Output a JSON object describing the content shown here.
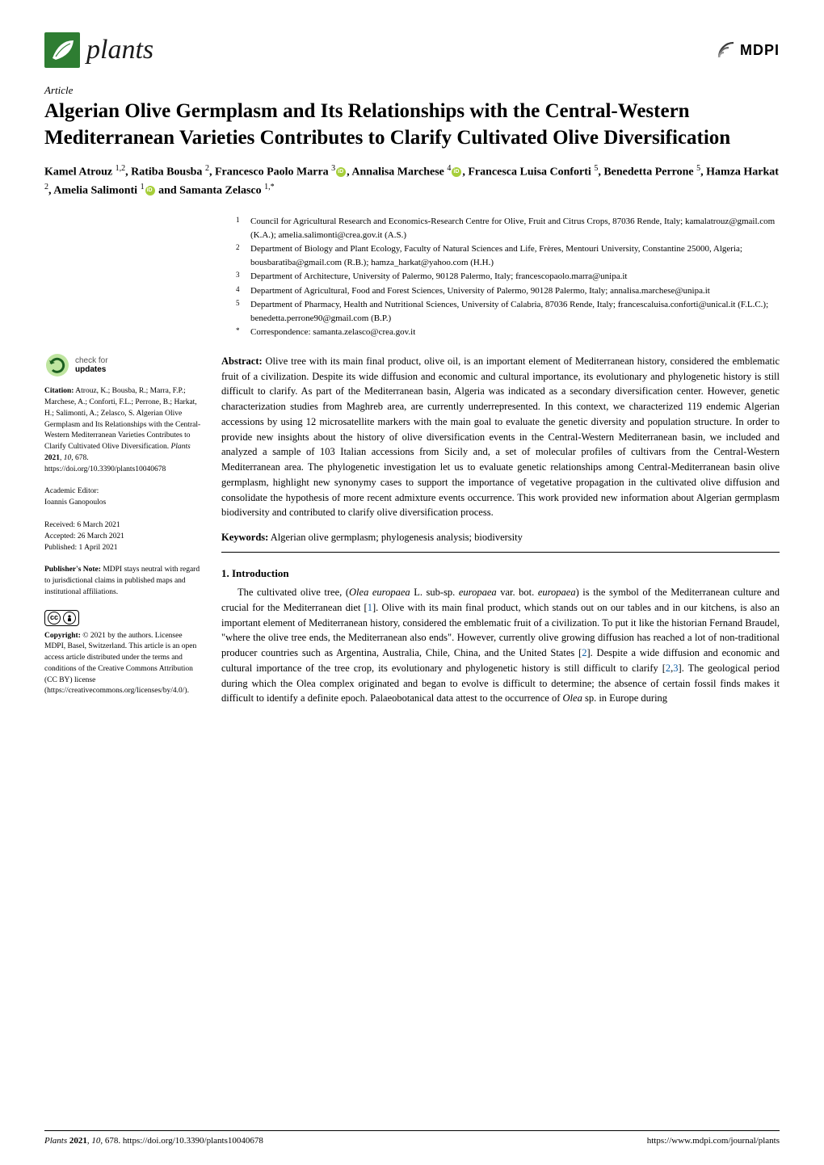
{
  "journal": {
    "name": "plants",
    "publisher": "MDPI"
  },
  "article_type": "Article",
  "title": "Algerian Olive Germplasm and Its Relationships with the Central-Western Mediterranean Varieties Contributes to Clarify Cultivated Olive Diversification",
  "authors_html": "Kamel Atrouz <sup>1,2</sup>, Ratiba Bousba <sup>2</sup>, Francesco Paolo Marra <sup>3</sup><span class=\"orcid\"></span>, Annalisa Marchese <sup>4</sup><span class=\"orcid\"></span>, Francesca Luisa Conforti <sup>5</sup>, Benedetta Perrone <sup>5</sup>, Hamza Harkat <sup>2</sup>, Amelia Salimonti <sup>1</sup><span class=\"orcid\"></span> and Samanta Zelasco <sup>1,*</sup>",
  "affiliations": [
    {
      "num": "1",
      "text": "Council for Agricultural Research and Economics-Research Centre for Olive, Fruit and Citrus Crops, 87036 Rende, Italy; kamalatrouz@gmail.com (K.A.); amelia.salimonti@crea.gov.it (A.S.)"
    },
    {
      "num": "2",
      "text": "Department of Biology and Plant Ecology, Faculty of Natural Sciences and Life, Frères, Mentouri University, Constantine 25000, Algeria; bousbaratiba@gmail.com (R.B.); hamza_harkat@yahoo.com (H.H.)"
    },
    {
      "num": "3",
      "text": "Department of Architecture, University of Palermo, 90128 Palermo, Italy; francescopaolo.marra@unipa.it"
    },
    {
      "num": "4",
      "text": "Department of Agricultural, Food and Forest Sciences, University of Palermo, 90128 Palermo, Italy; annalisa.marchese@unipa.it"
    },
    {
      "num": "5",
      "text": "Department of Pharmacy, Health and Nutritional Sciences, University of Calabria, 87036 Rende, Italy; francescaluisa.conforti@unical.it (F.L.C.); benedetta.perrone90@gmail.com (B.P.)"
    },
    {
      "num": "*",
      "text": "Correspondence: samanta.zelasco@crea.gov.it"
    }
  ],
  "abstract_label": "Abstract:",
  "abstract": "Olive tree with its main final product, olive oil, is an important element of Mediterranean history, considered the emblematic fruit of a civilization. Despite its wide diffusion and economic and cultural importance, its evolutionary and phylogenetic history is still difficult to clarify. As part of the Mediterranean basin, Algeria was indicated as a secondary diversification center. However, genetic characterization studies from Maghreb area, are currently underrepresented. In this context, we characterized 119 endemic Algerian accessions by using 12 microsatellite markers with the main goal to evaluate the genetic diversity and population structure. In order to provide new insights about the history of olive diversification events in the Central-Western Mediterranean basin, we included and analyzed a sample of 103 Italian accessions from Sicily and, a set of molecular profiles of cultivars from the Central-Western Mediterranean area. The phylogenetic investigation let us to evaluate genetic relationships among Central-Mediterranean basin olive germplasm, highlight new synonymy cases to support the importance of vegetative propagation in the cultivated olive diffusion and consolidate the hypothesis of more recent admixture events occurrence. This work provided new information about Algerian germplasm biodiversity and contributed to clarify olive diversification process.",
  "keywords_label": "Keywords:",
  "keywords": "Algerian olive germplasm; phylogenesis analysis; biodiversity",
  "section1_heading": "1. Introduction",
  "section1_body_html": "The cultivated olive tree, (<i>Olea europaea</i> L. sub-sp. <i>europaea</i> var. bot. <i>europaea</i>) is the symbol of the Mediterranean culture and crucial for the Mediterranean diet [<span class=\"ref-link\">1</span>]. Olive with its main final product, which stands out on our tables and in our kitchens, is also an important element of Mediterranean history, considered the emblematic fruit of a civilization. To put it like the historian Fernand Braudel, \"where the olive tree ends, the Mediterranean also ends\". However, currently olive growing diffusion has reached a lot of non-traditional producer countries such as Argentina, Australia, Chile, China, and the United States [<span class=\"ref-link\">2</span>]. Despite a wide diffusion and economic and cultural importance of the tree crop, its evolutionary and phylogenetic history is still difficult to clarify [<span class=\"ref-link\">2</span>,<span class=\"ref-link\">3</span>]. The geological period during which the Olea complex originated and began to evolve is difficult to determine; the absence of certain fossil finds makes it difficult to identify a definite epoch. Palaeobotanical data attest to the occurrence of <i>Olea</i> sp. in Europe during",
  "sidebar": {
    "check_l1": "check for",
    "check_l2": "updates",
    "citation_label": "Citation:",
    "citation": "Atrouz, K.; Bousba, R.; Marra, F.P.; Marchese, A.; Conforti, F.L.; Perrone, B.; Harkat, H.; Salimonti, A.; Zelasco, S. Algerian Olive Germplasm and Its Relationships with the Central-Western Mediterranean Varieties Contributes to Clarify Cultivated Olive Diversification. Plants 2021, 10, 678. https://doi.org/10.3390/plants10040678",
    "editor_label": "Academic Editor:",
    "editor": "Ioannis Ganopoulos",
    "received": "Received: 6 March 2021",
    "accepted": "Accepted: 26 March 2021",
    "published": "Published: 1 April 2021",
    "pubnote_label": "Publisher's Note:",
    "pubnote": "MDPI stays neutral with regard to jurisdictional claims in published maps and institutional affiliations.",
    "copyright_label": "Copyright:",
    "copyright": "© 2021 by the authors. Licensee MDPI, Basel, Switzerland. This article is an open access article distributed under the terms and conditions of the Creative Commons Attribution (CC BY) license (https://creativecommons.org/licenses/by/4.0/)."
  },
  "footer": {
    "left": "Plants 2021, 10, 678. https://doi.org/10.3390/plants10040678",
    "right": "https://www.mdpi.com/journal/plants"
  },
  "colors": {
    "leaf": "#2e7d32",
    "orcid": "#a6ce39",
    "ref": "#0f5fa6",
    "check_arrow": "#4caf50",
    "check_fill": "#bfe5a0"
  }
}
